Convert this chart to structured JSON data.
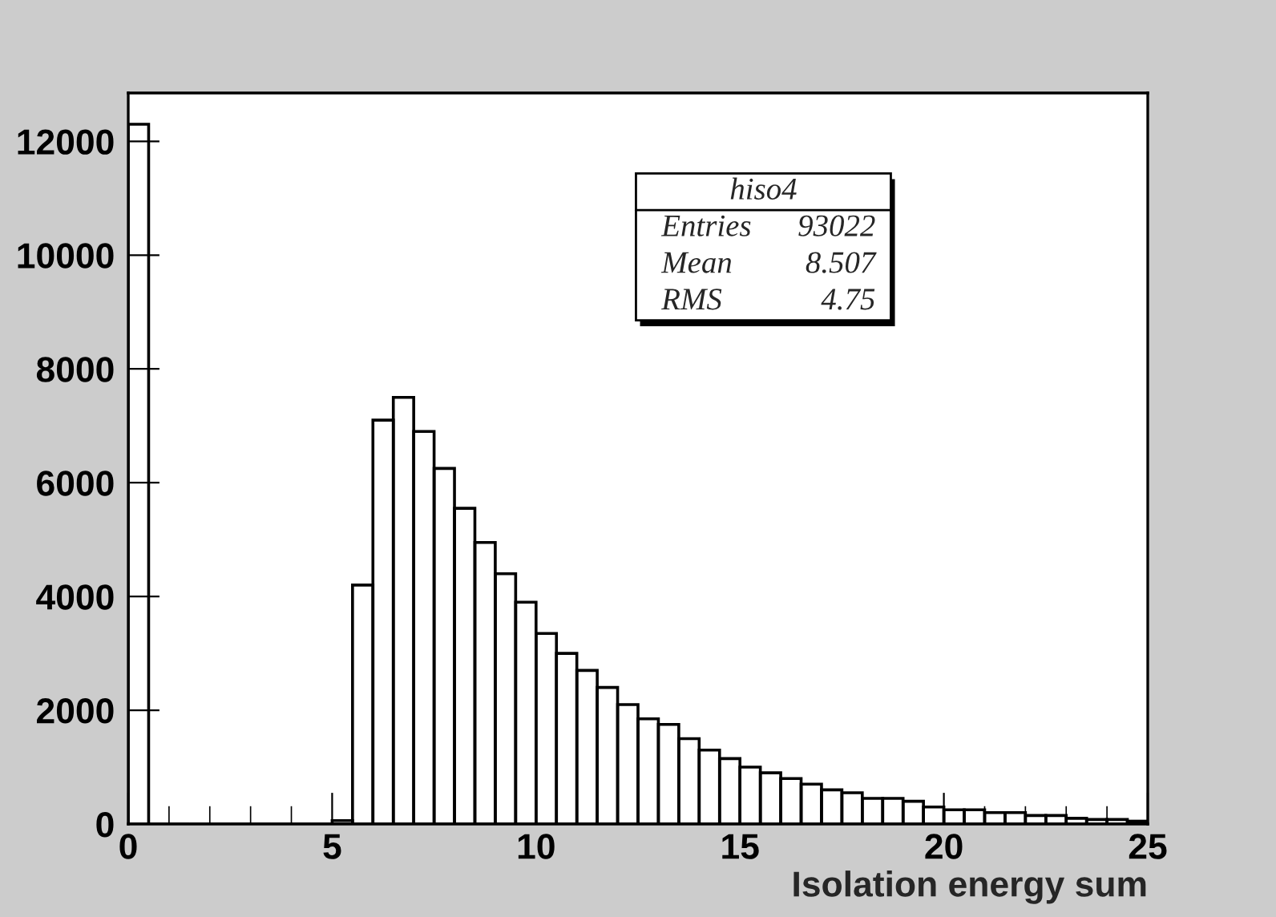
{
  "chart_data": {
    "type": "histogram",
    "xlabel": "Isolation energy sum",
    "bins": [
      0,
      0.5,
      1,
      1.5,
      2,
      2.5,
      3,
      3.5,
      4,
      4.5,
      5,
      5.5,
      6,
      6.5,
      7,
      7.5,
      8,
      8.5,
      9,
      9.5,
      10,
      10.5,
      11,
      11.5,
      12,
      12.5,
      13,
      13.5,
      14,
      14.5,
      15,
      15.5,
      16,
      16.5,
      17,
      17.5,
      18,
      18.5,
      19,
      19.5,
      20,
      20.5,
      21,
      21.5,
      22,
      22.5,
      23,
      23.5,
      24,
      24.5,
      25
    ],
    "values": [
      12300,
      0,
      0,
      0,
      0,
      0,
      0,
      0,
      0,
      0,
      60,
      4200,
      7100,
      7500,
      6900,
      6250,
      5550,
      4950,
      4400,
      3900,
      3350,
      3000,
      2700,
      2400,
      2100,
      1850,
      1750,
      1500,
      1300,
      1150,
      1000,
      900,
      800,
      700,
      600,
      550,
      450,
      450,
      400,
      300,
      250,
      250,
      200,
      200,
      150,
      150,
      100,
      80,
      80,
      50
    ],
    "color": "#000000",
    "xlim": [
      0,
      25
    ],
    "ylim": [
      0,
      12850
    ],
    "xticks": [
      0,
      5,
      10,
      15,
      20,
      25
    ],
    "yticks": [
      0,
      2000,
      4000,
      6000,
      8000,
      10000,
      12000
    ],
    "grid": false,
    "legend": false,
    "annotations": [
      "hiso4",
      "Entries",
      "93022",
      "Mean",
      "8.507",
      "RMS",
      "4.75"
    ]
  }
}
